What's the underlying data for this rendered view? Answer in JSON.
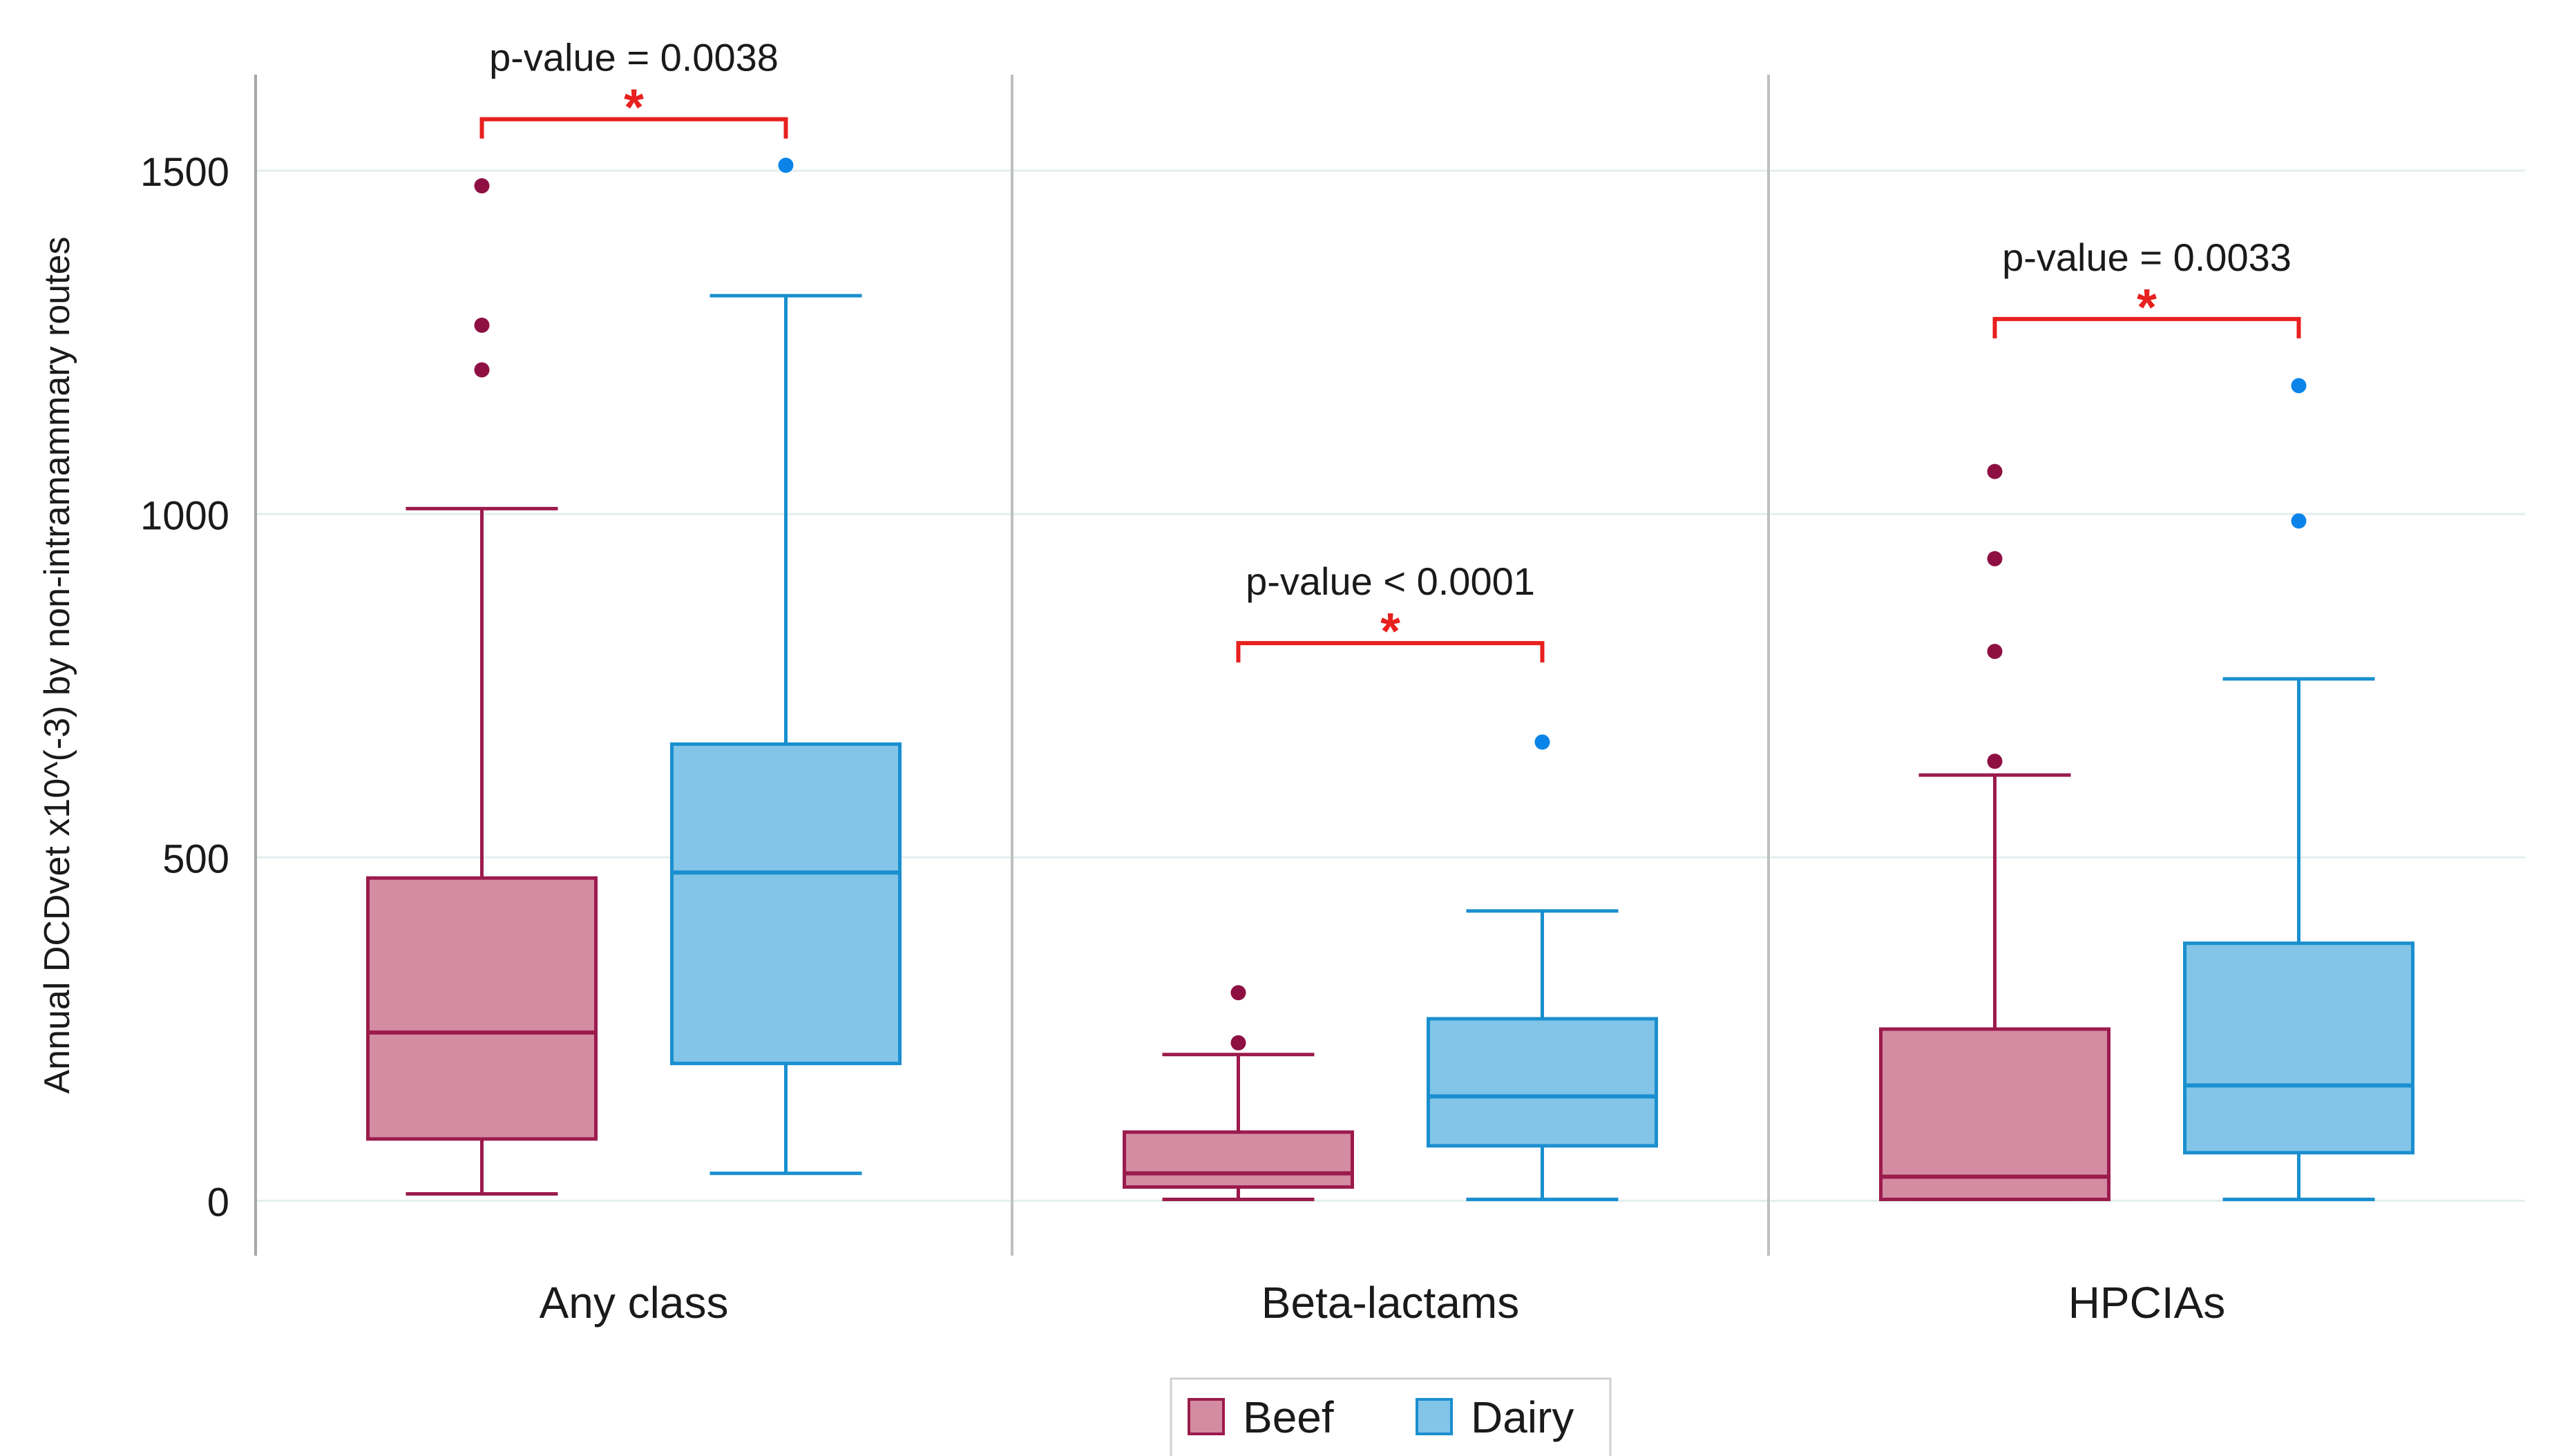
{
  "chart_data": {
    "type": "boxplot",
    "ylabel": "Annual DCDvet  x10^(-3) by non-intramammary routes",
    "ylim": [
      -80,
      1640
    ],
    "yticks": [
      0,
      500,
      1000,
      1500
    ],
    "grid": true,
    "legend_position": "bottom-center",
    "colors": {
      "Beef": {
        "fill": "#d48ca2",
        "stroke": "#9b1b4c",
        "outlier": "#8e1043"
      },
      "Dairy": {
        "fill": "#82c5e8",
        "stroke": "#1a8fcf",
        "outlier": "#0a84e8"
      },
      "significance": "#e8201e"
    },
    "legend": [
      {
        "name": "Beef"
      },
      {
        "name": "Dairy"
      }
    ],
    "groups": [
      {
        "label": "Any class",
        "p_value": "p-value = 0.0038",
        "star": "*",
        "bracket_y": 1575,
        "boxes": [
          {
            "series": "Beef",
            "min": 10,
            "q1": 90,
            "median": 245,
            "q3": 470,
            "max": 1008,
            "outliers": [
              1478,
              1275,
              1210
            ]
          },
          {
            "series": "Dairy",
            "min": 40,
            "q1": 200,
            "median": 478,
            "q3": 665,
            "max": 1318,
            "outliers": [
              1508
            ]
          }
        ]
      },
      {
        "label": "Beta-lactams",
        "p_value": "p-value < 0.0001",
        "star": "*",
        "bracket_y": 812,
        "boxes": [
          {
            "series": "Beef",
            "min": 2,
            "q1": 20,
            "median": 40,
            "q3": 100,
            "max": 213,
            "outliers": [
              303,
              230
            ]
          },
          {
            "series": "Dairy",
            "min": 2,
            "q1": 80,
            "median": 152,
            "q3": 265,
            "max": 422,
            "outliers": [
              668
            ]
          }
        ]
      },
      {
        "label": "HPCIAs",
        "p_value": "p-value = 0.0033",
        "star": "*",
        "bracket_y": 1284,
        "boxes": [
          {
            "series": "Beef",
            "min": 2,
            "q1": 2,
            "median": 35,
            "q3": 250,
            "max": 620,
            "outliers": [
              1062,
              935,
              800,
              640
            ]
          },
          {
            "series": "Dairy",
            "min": 2,
            "q1": 70,
            "median": 168,
            "q3": 375,
            "max": 760,
            "outliers": [
              1187,
              990
            ]
          }
        ]
      }
    ]
  }
}
